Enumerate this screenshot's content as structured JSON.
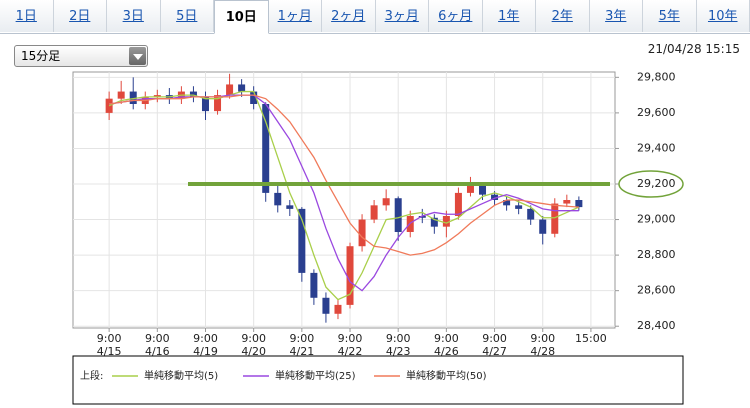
{
  "tabs": [
    "1日",
    "2日",
    "3日",
    "5日",
    "10日",
    "1ヶ月",
    "2ヶ月",
    "3ヶ月",
    "6ヶ月",
    "1年",
    "2年",
    "3年",
    "5年",
    "10年"
  ],
  "selected_tab": "10日",
  "interval": "15分足",
  "timestamp": "21/04/28 15:15",
  "chart_data": {
    "type": "candlestick",
    "x": [
      0,
      0.25,
      0.5,
      0.75,
      1,
      1.25,
      1.5,
      1.75,
      2,
      2.25,
      2.5,
      2.75,
      3,
      3.25,
      3.5,
      3.75,
      4,
      4.25,
      4.5,
      4.75,
      5,
      5.25,
      5.5,
      5.75,
      6,
      6.25,
      6.5,
      6.75,
      7,
      7.25,
      7.5,
      7.75,
      8,
      8.25,
      8.5,
      8.75,
      9,
      9.25,
      9.5,
      9.75
    ],
    "candles": {
      "open": [
        29600,
        29680,
        29720,
        29650,
        29690,
        29700,
        29680,
        29720,
        29690,
        29610,
        29700,
        29760,
        29720,
        29650,
        29150,
        29080,
        29060,
        28700,
        28560,
        28470,
        28520,
        28850,
        29000,
        29080,
        29120,
        28930,
        29020,
        29010,
        28960,
        29020,
        29150,
        29190,
        29140,
        29110,
        29080,
        29060,
        29000,
        28920,
        29090,
        29110
      ],
      "high": [
        29720,
        29780,
        29800,
        29720,
        29730,
        29740,
        29750,
        29750,
        29720,
        29730,
        29820,
        29790,
        29750,
        29660,
        29200,
        29110,
        29070,
        28720,
        28590,
        28550,
        28870,
        29030,
        29110,
        29170,
        29130,
        29050,
        29060,
        29030,
        29050,
        29180,
        29240,
        29210,
        29160,
        29130,
        29110,
        29080,
        29020,
        29120,
        29140,
        29130
      ],
      "low": [
        29560,
        29650,
        29620,
        29620,
        29660,
        29650,
        29650,
        29660,
        29560,
        29590,
        29680,
        29690,
        29620,
        29100,
        29040,
        29020,
        28650,
        28520,
        28420,
        28440,
        28500,
        28820,
        28980,
        29050,
        28880,
        28900,
        28980,
        28920,
        28900,
        29000,
        29130,
        29110,
        29080,
        29050,
        29030,
        28970,
        28860,
        28900,
        29070,
        29050
      ],
      "close": [
        29680,
        29720,
        29650,
        29690,
        29700,
        29680,
        29720,
        29690,
        29610,
        29700,
        29760,
        29720,
        29650,
        29150,
        29080,
        29060,
        28700,
        28560,
        28470,
        28520,
        28850,
        29000,
        29080,
        29120,
        28930,
        29020,
        29010,
        28960,
        29020,
        29150,
        29190,
        29140,
        29110,
        29080,
        29060,
        29000,
        28920,
        29090,
        29110,
        29070
      ],
      "up_color": "#e0483c",
      "down_color": "#2a3f8f"
    },
    "series": [
      {
        "name": "単純移動平均(5)",
        "color": "#a9cf4a",
        "values": [
          29640,
          29670,
          29680,
          29690,
          29690,
          29690,
          29700,
          29700,
          29680,
          29680,
          29700,
          29720,
          29720,
          29550,
          29350,
          29150,
          29000,
          28800,
          28620,
          28550,
          28580,
          28700,
          28850,
          29000,
          29010,
          29030,
          29040,
          29000,
          28980,
          29010,
          29070,
          29130,
          29150,
          29130,
          29100,
          29070,
          29010,
          29010,
          29040,
          29070
        ]
      },
      {
        "name": "単純移動平均(25)",
        "color": "#9a48e0",
        "values": [
          29650,
          29660,
          29670,
          29680,
          29680,
          29680,
          29690,
          29690,
          29690,
          29690,
          29700,
          29700,
          29700,
          29650,
          29550,
          29450,
          29300,
          29150,
          28950,
          28780,
          28650,
          28600,
          28680,
          28800,
          28900,
          28980,
          29020,
          29040,
          29030,
          29030,
          29060,
          29090,
          29120,
          29140,
          29120,
          29090,
          29060,
          29050,
          29050,
          29050
        ]
      },
      {
        "name": "単純移動平均(50)",
        "color": "#f07a5a",
        "values": [
          29650,
          29660,
          29670,
          29670,
          29680,
          29680,
          29680,
          29690,
          29690,
          29690,
          29690,
          29700,
          29700,
          29680,
          29620,
          29550,
          29450,
          29350,
          29220,
          29100,
          28980,
          28900,
          28850,
          28840,
          28820,
          28800,
          28810,
          28830,
          28870,
          28920,
          28980,
          29030,
          29080,
          29110,
          29110,
          29100,
          29090,
          29080,
          29075,
          29070
        ]
      }
    ],
    "legend_label": "上段:",
    "reference_line": {
      "value": 29200,
      "color": "#72a33a"
    },
    "xlim": [
      -0.75,
      10.5
    ],
    "xticks": [
      {
        "value": 0,
        "label": "9:00",
        "date": "4/15"
      },
      {
        "value": 1,
        "label": "9:00",
        "date": "4/16"
      },
      {
        "value": 2,
        "label": "9:00",
        "date": "4/19"
      },
      {
        "value": 3,
        "label": "9:00",
        "date": "4/20"
      },
      {
        "value": 4,
        "label": "9:00",
        "date": "4/21"
      },
      {
        "value": 5,
        "label": "9:00",
        "date": "4/22"
      },
      {
        "value": 6,
        "label": "9:00",
        "date": "4/23"
      },
      {
        "value": 7,
        "label": "9:00",
        "date": "4/26"
      },
      {
        "value": 8,
        "label": "9:00",
        "date": "4/27"
      },
      {
        "value": 9,
        "label": "9:00",
        "date": "4/28"
      },
      {
        "value": 10,
        "label": "15:00"
      }
    ],
    "ylim": [
      28390,
      29830
    ],
    "yticks": [
      {
        "value": 28400,
        "label": "28,400"
      },
      {
        "value": 28600,
        "label": "28,600"
      },
      {
        "value": 28800,
        "label": "28,800"
      },
      {
        "value": 29000,
        "label": "29,000"
      },
      {
        "value": 29200,
        "label": "29,200"
      },
      {
        "value": 29400,
        "label": "29,400"
      },
      {
        "value": 29600,
        "label": "29,600"
      },
      {
        "value": 29800,
        "label": "29,800"
      }
    ],
    "grid": true
  }
}
